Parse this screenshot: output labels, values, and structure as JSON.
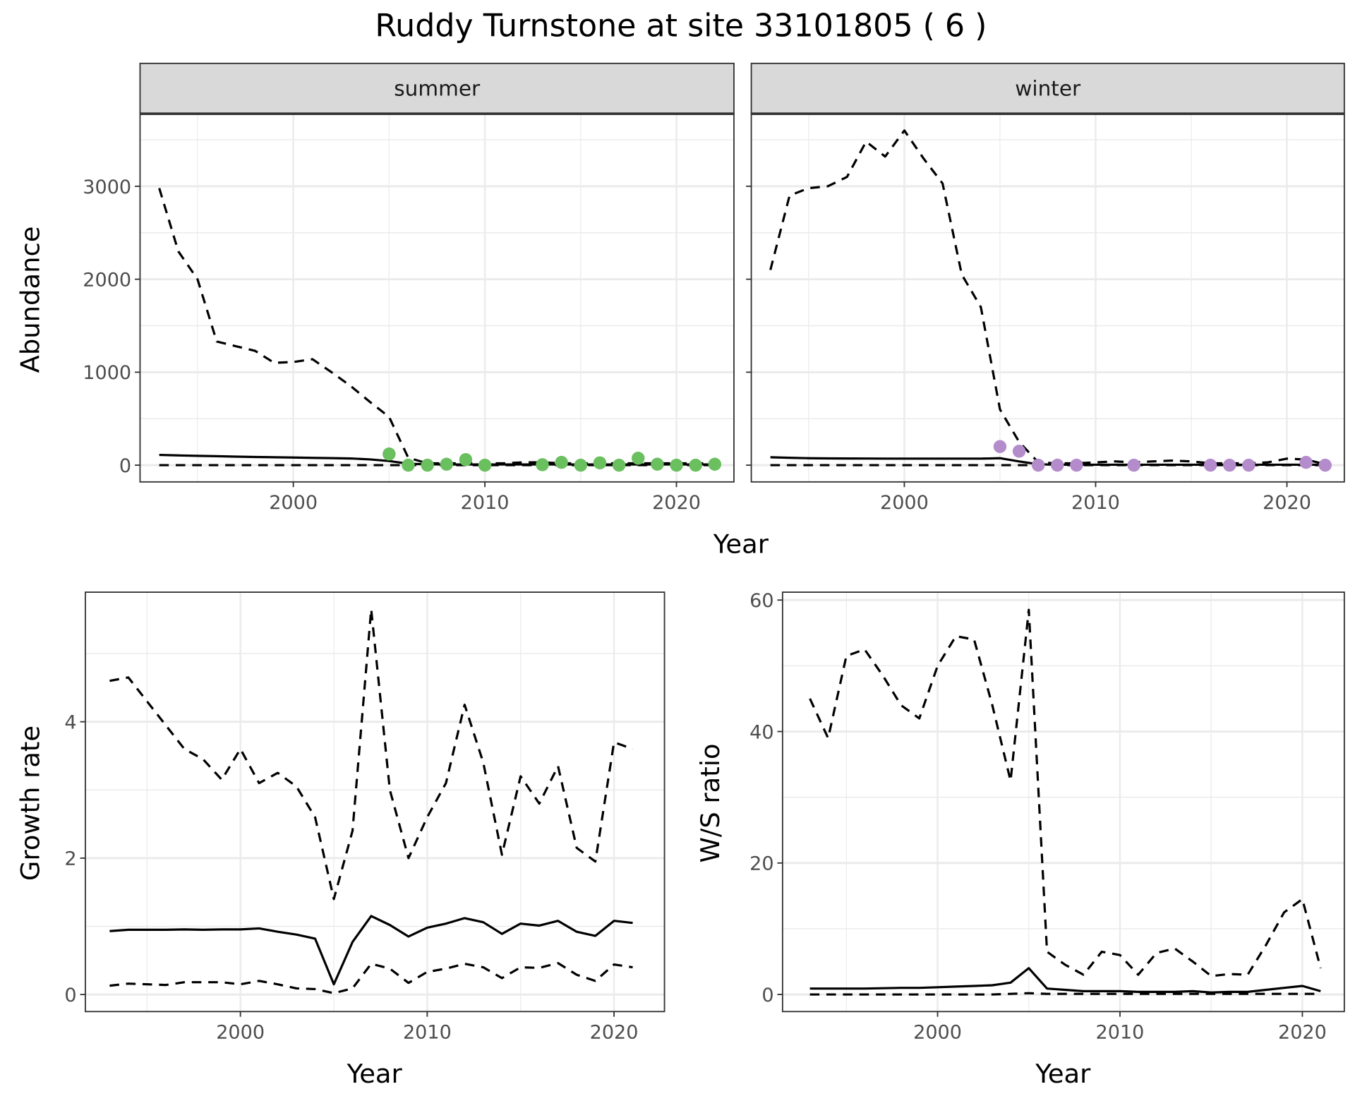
{
  "title": "Ruddy Turnstone at site 33101805 ( 6 )",
  "colors": {
    "summer_points": "#6abf5e",
    "winter_points": "#b48ccb",
    "line": "#000000",
    "grid": "#ebebeb",
    "strip": "#d9d9d9"
  },
  "chart_data": [
    {
      "type": "line",
      "panel": "summer",
      "strip": "summer",
      "xlabel": "Year",
      "ylabel": "Abundance",
      "xlim": [
        1992,
        2023
      ],
      "ylim": [
        -180,
        3780
      ],
      "xticks": [
        2000,
        2010,
        2020
      ],
      "yticks": [
        0,
        1000,
        2000,
        3000
      ],
      "x": [
        1993,
        1994,
        1995,
        1996,
        1997,
        1998,
        1999,
        2000,
        2001,
        2002,
        2003,
        2004,
        2005,
        2006,
        2007,
        2008,
        2009,
        2010,
        2011,
        2012,
        2013,
        2014,
        2015,
        2016,
        2017,
        2018,
        2019,
        2020,
        2021,
        2022
      ],
      "series": [
        {
          "name": "upper",
          "style": "dashed",
          "values": [
            2980,
            2300,
            2000,
            1330,
            1280,
            1230,
            1100,
            1110,
            1140,
            1000,
            850,
            680,
            520,
            80,
            20,
            20,
            20,
            20,
            20,
            30,
            30,
            20,
            20,
            20,
            20,
            20,
            20,
            20,
            20,
            20
          ]
        },
        {
          "name": "mean",
          "style": "solid",
          "values": [
            110,
            105,
            100,
            96,
            92,
            88,
            85,
            82,
            79,
            76,
            72,
            62,
            45,
            15,
            10,
            8,
            8,
            8,
            8,
            8,
            8,
            8,
            8,
            8,
            8,
            8,
            8,
            8,
            8,
            8
          ]
        },
        {
          "name": "lower",
          "style": "dashed",
          "values": [
            0,
            0,
            0,
            0,
            0,
            0,
            0,
            0,
            0,
            0,
            0,
            0,
            0,
            0,
            0,
            0,
            0,
            0,
            0,
            0,
            0,
            0,
            0,
            0,
            0,
            0,
            0,
            0,
            0,
            0
          ]
        }
      ],
      "points": {
        "x": [
          2005,
          2006,
          2007,
          2008,
          2009,
          2010,
          2013,
          2014,
          2015,
          2016,
          2017,
          2018,
          2019,
          2020,
          2021,
          2022
        ],
        "y": [
          120,
          0,
          0,
          10,
          60,
          0,
          5,
          30,
          0,
          25,
          0,
          75,
          10,
          0,
          0,
          10
        ]
      }
    },
    {
      "type": "line",
      "panel": "winter",
      "strip": "winter",
      "xlabel": "Year",
      "ylabel": "Abundance",
      "xlim": [
        1992,
        2023
      ],
      "ylim": [
        -180,
        3780
      ],
      "xticks": [
        2000,
        2010,
        2020
      ],
      "yticks": [
        0,
        1000,
        2000,
        3000
      ],
      "x": [
        1993,
        1994,
        1995,
        1996,
        1997,
        1998,
        1999,
        2000,
        2001,
        2002,
        2003,
        2004,
        2005,
        2006,
        2007,
        2008,
        2009,
        2010,
        2011,
        2012,
        2013,
        2014,
        2015,
        2016,
        2017,
        2018,
        2019,
        2020,
        2021,
        2022
      ],
      "series": [
        {
          "name": "upper",
          "style": "dashed",
          "values": [
            2100,
            2900,
            2980,
            3000,
            3100,
            3480,
            3320,
            3600,
            3300,
            3030,
            2050,
            1700,
            600,
            250,
            30,
            20,
            20,
            30,
            40,
            30,
            40,
            50,
            40,
            20,
            20,
            20,
            30,
            70,
            60,
            10
          ]
        },
        {
          "name": "mean",
          "style": "solid",
          "values": [
            85,
            80,
            75,
            73,
            72,
            71,
            70,
            70,
            70,
            70,
            70,
            70,
            75,
            40,
            10,
            5,
            5,
            5,
            5,
            5,
            5,
            5,
            5,
            5,
            5,
            5,
            5,
            5,
            5,
            5
          ]
        },
        {
          "name": "lower",
          "style": "dashed",
          "values": [
            0,
            0,
            0,
            0,
            0,
            0,
            0,
            0,
            0,
            0,
            0,
            0,
            0,
            0,
            0,
            0,
            0,
            0,
            0,
            0,
            0,
            0,
            0,
            0,
            0,
            0,
            0,
            0,
            0,
            0
          ]
        }
      ],
      "points": {
        "x": [
          2005,
          2006,
          2007,
          2008,
          2009,
          2012,
          2016,
          2017,
          2018,
          2021,
          2022
        ],
        "y": [
          200,
          150,
          0,
          0,
          0,
          0,
          0,
          0,
          0,
          30,
          0
        ]
      }
    },
    {
      "type": "line",
      "panel": "growth",
      "xlabel": "Year",
      "ylabel": "Growth rate",
      "xlim": [
        1991.7,
        2022.7
      ],
      "ylim": [
        -0.25,
        5.9
      ],
      "xticks": [
        2000,
        2010,
        2020
      ],
      "yticks": [
        0,
        2,
        4
      ],
      "x": [
        1993,
        1994,
        1995,
        1996,
        1997,
        1998,
        1999,
        2000,
        2001,
        2002,
        2003,
        2004,
        2005,
        2006,
        2007,
        2008,
        2009,
        2010,
        2011,
        2012,
        2013,
        2014,
        2015,
        2016,
        2017,
        2018,
        2019,
        2020,
        2021
      ],
      "series": [
        {
          "name": "upper",
          "style": "dashed",
          "values": [
            4.6,
            4.65,
            4.3,
            3.95,
            3.6,
            3.45,
            3.15,
            3.6,
            3.1,
            3.25,
            3.05,
            2.6,
            1.4,
            2.4,
            5.65,
            3.0,
            2.0,
            2.6,
            3.1,
            4.25,
            3.4,
            2.05,
            3.2,
            2.8,
            3.35,
            2.15,
            1.95,
            3.7,
            3.6
          ]
        },
        {
          "name": "mean",
          "style": "solid",
          "values": [
            0.93,
            0.95,
            0.95,
            0.95,
            0.955,
            0.95,
            0.955,
            0.955,
            0.97,
            0.92,
            0.88,
            0.82,
            0.15,
            0.77,
            1.15,
            1.02,
            0.85,
            0.98,
            1.04,
            1.12,
            1.06,
            0.89,
            1.04,
            1.01,
            1.08,
            0.92,
            0.86,
            1.08,
            1.05
          ]
        },
        {
          "name": "lower",
          "style": "dashed",
          "values": [
            0.13,
            0.16,
            0.15,
            0.14,
            0.18,
            0.18,
            0.18,
            0.15,
            0.2,
            0.15,
            0.09,
            0.08,
            0.02,
            0.09,
            0.45,
            0.38,
            0.17,
            0.33,
            0.38,
            0.45,
            0.4,
            0.24,
            0.4,
            0.39,
            0.46,
            0.29,
            0.2,
            0.44,
            0.4
          ]
        }
      ]
    },
    {
      "type": "line",
      "panel": "ratio",
      "xlabel": "Year",
      "ylabel": "W/S ratio",
      "xlim": [
        1991.5,
        2022.3
      ],
      "ylim": [
        -2.6,
        61.2
      ],
      "xticks": [
        2000,
        2010,
        2020
      ],
      "yticks": [
        0,
        20,
        40,
        60
      ],
      "x": [
        1993,
        1994,
        1995,
        1996,
        1997,
        1998,
        1999,
        2000,
        2001,
        2002,
        2003,
        2004,
        2005,
        2006,
        2007,
        2008,
        2009,
        2010,
        2011,
        2012,
        2013,
        2014,
        2015,
        2016,
        2017,
        2018,
        2019,
        2020,
        2021
      ],
      "series": [
        {
          "name": "upper",
          "style": "dashed",
          "values": [
            45,
            39,
            51.5,
            52.5,
            48.5,
            44,
            42,
            50,
            54.5,
            54,
            44,
            32.5,
            58.5,
            6.5,
            4.5,
            3,
            6.5,
            6,
            3,
            6.3,
            7,
            5,
            2.8,
            3.1,
            3,
            7.5,
            12.5,
            14.5,
            4
          ]
        },
        {
          "name": "mean",
          "style": "solid",
          "values": [
            0.9,
            0.9,
            0.9,
            0.9,
            0.95,
            1,
            1,
            1.1,
            1.2,
            1.3,
            1.4,
            1.8,
            4,
            0.9,
            0.7,
            0.5,
            0.5,
            0.5,
            0.4,
            0.4,
            0.4,
            0.5,
            0.3,
            0.4,
            0.4,
            0.7,
            1.0,
            1.3,
            0.5
          ]
        },
        {
          "name": "lower",
          "style": "dashed",
          "values": [
            0,
            0,
            0,
            0,
            0,
            0,
            0,
            0,
            0,
            0,
            0,
            0.1,
            0.2,
            0.1,
            0.1,
            0.1,
            0.1,
            0.1,
            0.1,
            0.1,
            0.1,
            0.1,
            0.1,
            0.1,
            0.1,
            0.1,
            0.1,
            0.1,
            0.1
          ]
        }
      ]
    }
  ]
}
